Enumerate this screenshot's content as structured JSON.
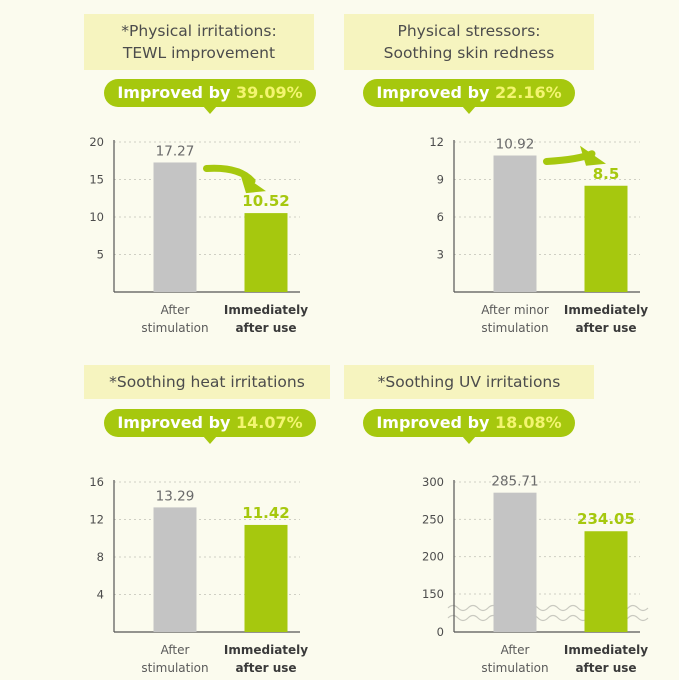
{
  "colors": {
    "background": "#fbfbee",
    "title_bg": "#f6f4bf",
    "pill": "#a6c80e",
    "pill_highlight": "#f3f570",
    "bar_before": "#c4c4c4",
    "bar_after": "#a6c80e",
    "arrow": "#a6c80e",
    "label_green": "#a6c80e",
    "text": "#4c4c4c"
  },
  "panels": [
    {
      "title_lines": [
        "*Physical irritations:",
        "TEWL improvement"
      ],
      "pill_prefix": "Improved by ",
      "pill_value": "39.09%"
    },
    {
      "title_lines": [
        "Physical stressors:",
        "Soothing skin redness"
      ],
      "pill_prefix": "Improved by ",
      "pill_value": "22.16%"
    },
    {
      "title_lines": [
        "*Soothing heat irritations"
      ],
      "pill_prefix": "Improved by ",
      "pill_value": "14.07%"
    },
    {
      "title_lines": [
        "*Soothing UV irritations"
      ],
      "pill_prefix": "Improved by ",
      "pill_value": "18.08%"
    }
  ],
  "chart_data": [
    {
      "type": "bar",
      "title": "*Physical irritations: TEWL improvement",
      "categories": [
        "After stimulation",
        "Immediately after use"
      ],
      "category_lines": [
        [
          "After",
          "stimulation"
        ],
        [
          "Immediately",
          "after use"
        ]
      ],
      "values": [
        17.27,
        10.52
      ],
      "value_labels": [
        "17.27",
        "10.52"
      ],
      "yticks": [
        5,
        10,
        15,
        20
      ],
      "ylim": [
        0,
        20
      ],
      "grid": true,
      "arrow": true,
      "axis_break": false
    },
    {
      "type": "bar",
      "title": "Physical stressors: Soothing skin redness",
      "categories": [
        "After minor stimulation",
        "Immediately after use"
      ],
      "category_lines": [
        [
          "After minor",
          "stimulation"
        ],
        [
          "Immediately",
          "after use"
        ]
      ],
      "values": [
        10.92,
        8.5
      ],
      "value_labels": [
        "10.92",
        "8.5"
      ],
      "yticks": [
        3,
        6,
        9,
        12
      ],
      "ylim": [
        0,
        12
      ],
      "grid": true,
      "arrow": true,
      "axis_break": false
    },
    {
      "type": "bar",
      "title": "*Soothing heat irritations",
      "categories": [
        "After stimulation",
        "Immediately after use"
      ],
      "category_lines": [
        [
          "After",
          "stimulation"
        ],
        [
          "Immediately",
          "after use"
        ]
      ],
      "values": [
        13.29,
        11.42
      ],
      "value_labels": [
        "13.29",
        "11.42"
      ],
      "yticks": [
        4,
        8,
        12,
        16
      ],
      "ylim": [
        0,
        16
      ],
      "grid": true,
      "arrow": false,
      "axis_break": false
    },
    {
      "type": "bar",
      "title": "*Soothing UV irritations",
      "categories": [
        "After stimulation",
        "Immediately after use"
      ],
      "category_lines": [
        [
          "After",
          "stimulation"
        ],
        [
          "Immediately",
          "after use"
        ]
      ],
      "values": [
        285.71,
        234.05
      ],
      "value_labels": [
        "285.71",
        "234.05"
      ],
      "yticks": [
        0,
        150,
        200,
        250,
        300
      ],
      "ylim": [
        0,
        300
      ],
      "grid": true,
      "arrow": false,
      "axis_break": true
    }
  ]
}
